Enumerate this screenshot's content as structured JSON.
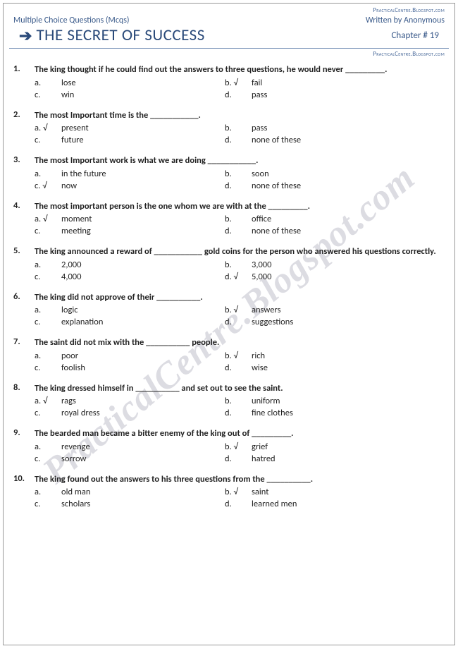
{
  "site_url": "PracticalCentre.Blogspot.com",
  "header": {
    "left": "Multiple Choice Questions (Mcqs)",
    "right": "Written by Anonymous"
  },
  "title": "THE SECRET OF SUCCESS",
  "chapter": "Chapter # 19",
  "watermark": "PracticalCentre.Blogspot.com",
  "tick": "√",
  "questions": [
    {
      "n": "1.",
      "text": "The king thought if he could find out the answers to three questions, he would never _________.",
      "opts": [
        {
          "l": "a.",
          "t": "lose",
          "c": false
        },
        {
          "l": "b.",
          "t": "fail",
          "c": true
        },
        {
          "l": "c.",
          "t": "win",
          "c": false
        },
        {
          "l": "d.",
          "t": "pass",
          "c": false
        }
      ]
    },
    {
      "n": "2.",
      "text": "The most Important time is the ___________.",
      "opts": [
        {
          "l": "a.",
          "t": "present",
          "c": true
        },
        {
          "l": "b.",
          "t": "pass",
          "c": false
        },
        {
          "l": "c.",
          "t": "future",
          "c": false
        },
        {
          "l": "d.",
          "t": "none of these",
          "c": false
        }
      ]
    },
    {
      "n": "3.",
      "text": "The most Important work is what we are doing ___________.",
      "opts": [
        {
          "l": "a.",
          "t": "in the future",
          "c": false
        },
        {
          "l": "b.",
          "t": "soon",
          "c": false
        },
        {
          "l": "c.",
          "t": "now",
          "c": true
        },
        {
          "l": "d.",
          "t": "none of these",
          "c": false
        }
      ]
    },
    {
      "n": "4.",
      "text": "The most important person is the one whom we are with at the _________.",
      "opts": [
        {
          "l": "a.",
          "t": "moment",
          "c": true
        },
        {
          "l": "b.",
          "t": "office",
          "c": false
        },
        {
          "l": "c.",
          "t": "meeting",
          "c": false
        },
        {
          "l": "d.",
          "t": "none of these",
          "c": false
        }
      ]
    },
    {
      "n": "5.",
      "text": "The king announced a reward of ___________ gold coins for the person who answered his questions correctly.",
      "opts": [
        {
          "l": "a.",
          "t": "2,000",
          "c": false
        },
        {
          "l": "b.",
          "t": "3,000",
          "c": false
        },
        {
          "l": "c.",
          "t": "4,000",
          "c": false
        },
        {
          "l": "d.",
          "t": "5,000",
          "c": true
        }
      ]
    },
    {
      "n": "6.",
      "text": "The king did not approve of their __________.",
      "opts": [
        {
          "l": "a.",
          "t": "logic",
          "c": false
        },
        {
          "l": "b.",
          "t": "answers",
          "c": true
        },
        {
          "l": "c.",
          "t": "explanation",
          "c": false
        },
        {
          "l": "d.",
          "t": "suggestions",
          "c": false
        }
      ]
    },
    {
      "n": "7.",
      "text": "The saint did not mix with the __________ people.",
      "opts": [
        {
          "l": "a.",
          "t": "poor",
          "c": false
        },
        {
          "l": "b.",
          "t": "rich",
          "c": true
        },
        {
          "l": "c.",
          "t": "foolish",
          "c": false
        },
        {
          "l": "d.",
          "t": "wise",
          "c": false
        }
      ]
    },
    {
      "n": "8.",
      "text": "The king dressed himself in __________ and set out to see the saint.",
      "opts": [
        {
          "l": "a.",
          "t": "rags",
          "c": true
        },
        {
          "l": "b.",
          "t": "uniform",
          "c": false
        },
        {
          "l": "c.",
          "t": "royal dress",
          "c": false
        },
        {
          "l": "d.",
          "t": "fine clothes",
          "c": false
        }
      ]
    },
    {
      "n": "9.",
      "text": "The bearded man became a bitter enemy of the king out of _________.",
      "opts": [
        {
          "l": "a.",
          "t": "revenge",
          "c": false
        },
        {
          "l": "b.",
          "t": "grief",
          "c": true
        },
        {
          "l": "c.",
          "t": "sorrow",
          "c": false
        },
        {
          "l": "d.",
          "t": "hatred",
          "c": false
        }
      ]
    },
    {
      "n": "10.",
      "text": "The king found out the answers to his three questions from the __________.",
      "opts": [
        {
          "l": "a.",
          "t": "old man",
          "c": false
        },
        {
          "l": "b.",
          "t": "saint",
          "c": true
        },
        {
          "l": "c.",
          "t": "scholars",
          "c": false
        },
        {
          "l": "d.",
          "t": "learned men",
          "c": false
        }
      ]
    }
  ]
}
